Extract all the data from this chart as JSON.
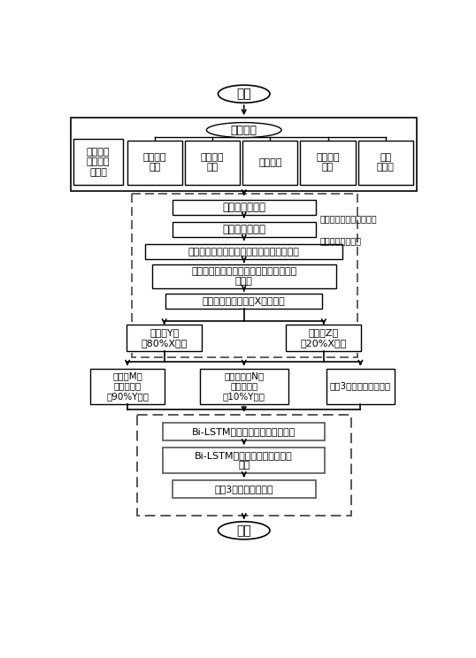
{
  "title": "开始",
  "end_label": "结束",
  "meteorological_box_label": "气象参数",
  "raw_data_label": "原始光伏\n输出功率\n数据集",
  "sub_boxes": [
    "全球水平\n辐射",
    "漫射水平\n辐射",
    "环境温度",
    "环境相对\n湿度",
    "风向\n（度）"
  ],
  "dashed_inner_boxes": [
    "皮尔森相关系数",
    "灰色关联度分析",
    "根据待预测日天气类型选择相应的特征参数",
    "计算待预测日与历史日之间特征参数的欧\n式距离",
    "选择欧式距离较小的X天训练集"
  ],
  "side_labels": [
    "选择输入的气象特征参数",
    "多种特征参数排序"
  ],
  "train_label": "训练集Y天\n（80%X天）",
  "test_label": "测试集Z天\n（20%X天）",
  "similar_m_label": "相似日M天\n（训练集）\n（90%Y天）",
  "similar_n_label": "最佳相似日N天\n（验证集）\n（10%Y天）",
  "continuous_test_label": "连续3天作为测试集输入",
  "bilstm_boxes": [
    "Bi-LSTM深度学习神经网络初始化",
    "Bi-LSTM深度学习神经网络预测\n模型",
    "连续3天预测功率输出"
  ],
  "bg_color": "#ffffff"
}
